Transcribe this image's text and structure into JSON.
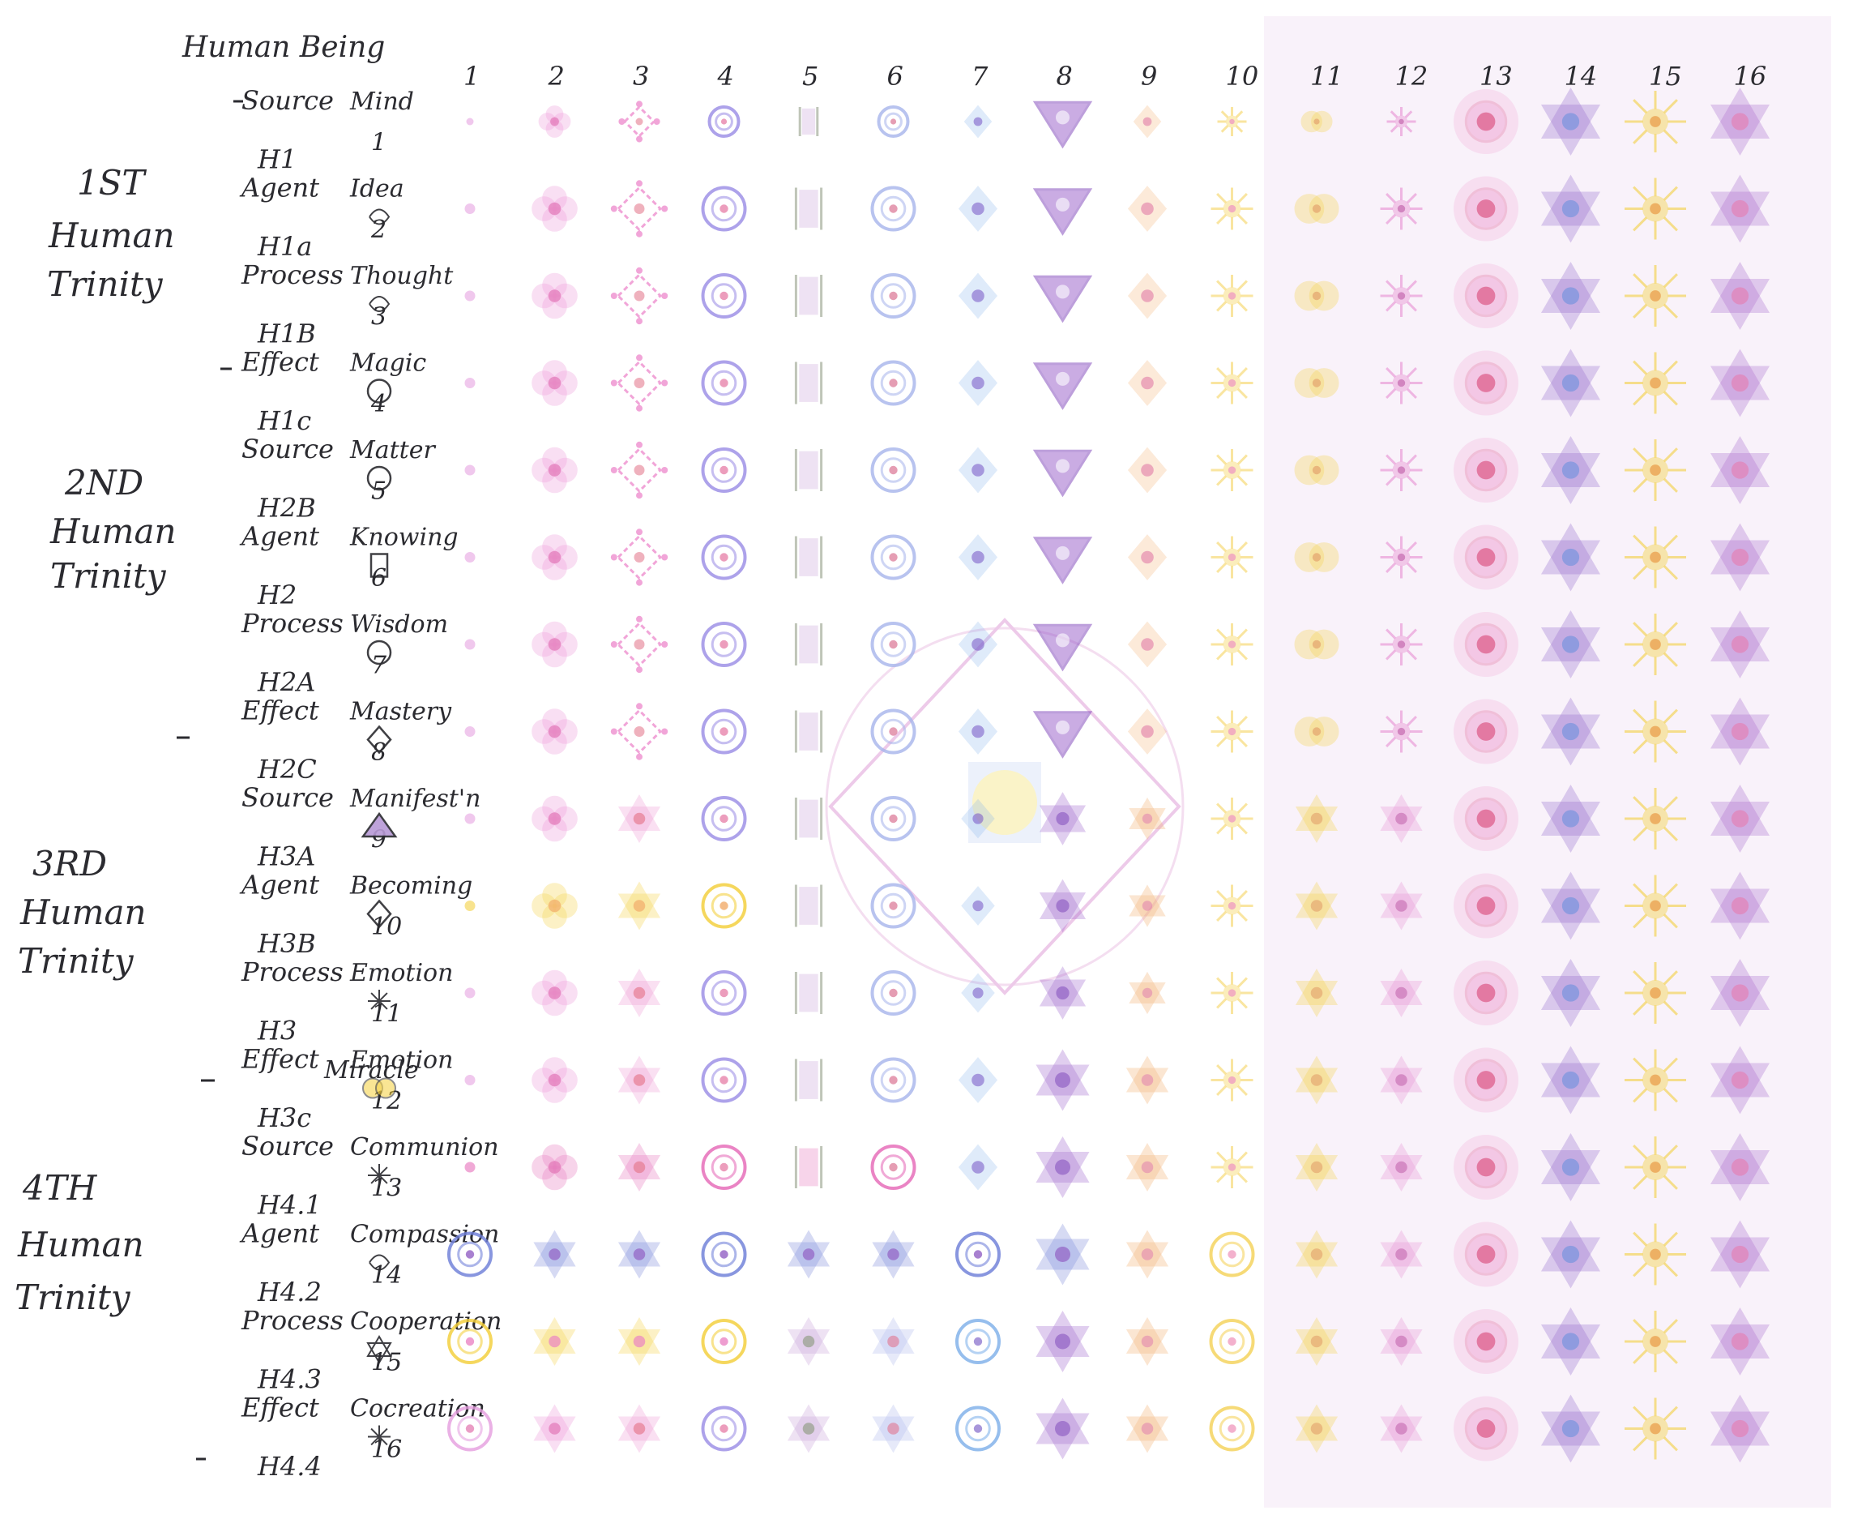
{
  "header": {
    "title": "Human Being",
    "first_concept": "Mind"
  },
  "columns": [
    "1",
    "2",
    "3",
    "4",
    "5",
    "6",
    "7",
    "8",
    "9",
    "10",
    "11",
    "12",
    "13",
    "14",
    "15",
    "16"
  ],
  "trinities": [
    {
      "lines": [
        "1ST",
        "Human",
        "Trinity"
      ]
    },
    {
      "lines": [
        "2ND",
        "Human",
        "Trinity"
      ]
    },
    {
      "lines": [
        "3RD",
        "Human",
        "Trinity"
      ]
    },
    {
      "lines": [
        "4TH",
        "Human",
        "Trinity"
      ]
    }
  ],
  "rows": [
    {
      "code": "",
      "role": "Source",
      "concept": "Mind",
      "num": ""
    },
    {
      "code": "H1",
      "role": "Agent",
      "concept": "Idea",
      "num": "1"
    },
    {
      "code": "H1a",
      "role": "Process",
      "concept": "Thought",
      "num": "2"
    },
    {
      "code": "H1B",
      "role": "Effect",
      "concept": "Magic",
      "num": "3"
    },
    {
      "code": "H1c",
      "role": "Source",
      "concept": "Matter",
      "num": "4"
    },
    {
      "code": "H2B",
      "role": "Agent",
      "concept": "Knowing",
      "num": "5"
    },
    {
      "code": "H2",
      "role": "Process",
      "concept": "Wisdom",
      "num": "6"
    },
    {
      "code": "H2A",
      "role": "Effect",
      "concept": "Mastery",
      "num": "7"
    },
    {
      "code": "H2C",
      "role": "Source",
      "concept": "Manifest'n",
      "num": "8"
    },
    {
      "code": "H3A",
      "role": "Agent",
      "concept": "Becoming",
      "num": "9"
    },
    {
      "code": "H3B",
      "role": "Process",
      "concept": "Emotion",
      "num": "10"
    },
    {
      "code": "H3",
      "role": "Effect",
      "concept": "Emotion",
      "num": "11"
    },
    {
      "code": "H3c",
      "role": "Source",
      "concept": "Communion",
      "num": "12"
    },
    {
      "code": "H4.1",
      "role": "Agent",
      "concept": "Compassion",
      "num": "13"
    },
    {
      "code": "H4.2",
      "role": "Process",
      "concept": "Cooperation",
      "num": "14"
    },
    {
      "code": "H4.3",
      "role": "Effect",
      "concept": "Cocreation",
      "num": "15"
    },
    {
      "code": "H4.4",
      "role": "",
      "concept": "",
      "num": "16"
    }
  ],
  "extra_text": {
    "row12_concept2": "Miracle"
  },
  "colors": {
    "pink": "#e88ad0",
    "magenta": "#d9479b",
    "red": "#e0606a",
    "violet": "#8a5fc8",
    "purple": "#7a3fb8",
    "blue": "#6f9ee6",
    "teal": "#86b7e8",
    "yellow": "#f3cf3a",
    "orange": "#efa74b",
    "green": "#8f9a7a",
    "ink": "#2b2b30"
  }
}
